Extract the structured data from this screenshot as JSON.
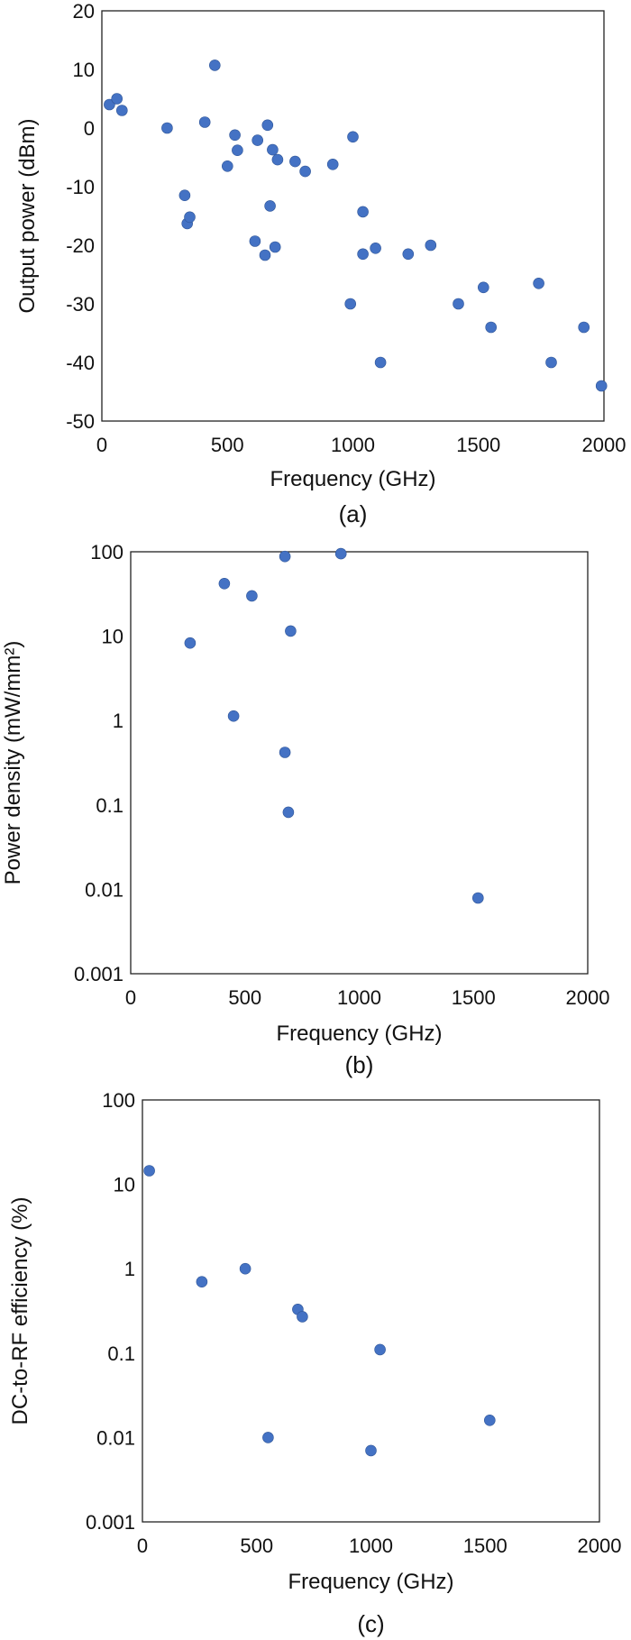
{
  "chart_data": [
    {
      "type": "scatter",
      "caption": "(a)",
      "xlabel": "Frequency (GHz)",
      "ylabel": "Output power (dBm)",
      "xlim": [
        0,
        2000
      ],
      "ylim": [
        -50,
        20
      ],
      "yscale": "linear",
      "xticks": [
        "0",
        "500",
        "1000",
        "1500",
        "2000"
      ],
      "yticks": [
        "20",
        "10",
        "0",
        "-10",
        "-20",
        "-30",
        "-40",
        "-50"
      ],
      "grid": false,
      "color": "#4472c4",
      "points": [
        [
          30,
          4
        ],
        [
          80,
          3
        ],
        [
          60,
          5
        ],
        [
          260,
          0
        ],
        [
          330,
          -11.5
        ],
        [
          340,
          -16.3
        ],
        [
          350,
          -15.2
        ],
        [
          410,
          1
        ],
        [
          450,
          10.7
        ],
        [
          500,
          -6.5
        ],
        [
          540,
          -3.8
        ],
        [
          530,
          -1.2
        ],
        [
          610,
          -19.3
        ],
        [
          620,
          -2.1
        ],
        [
          650,
          -21.7
        ],
        [
          660,
          0.5
        ],
        [
          680,
          -3.7
        ],
        [
          670,
          -13.3
        ],
        [
          700,
          -5.4
        ],
        [
          690,
          -20.3
        ],
        [
          770,
          -5.7
        ],
        [
          810,
          -7.4
        ],
        [
          920,
          -6.2
        ],
        [
          990,
          -30
        ],
        [
          1000,
          -1.5
        ],
        [
          1040,
          -14.3
        ],
        [
          1040,
          -21.5
        ],
        [
          1090,
          -20.5
        ],
        [
          1110,
          -40
        ],
        [
          1220,
          -21.5
        ],
        [
          1310,
          -20
        ],
        [
          1420,
          -30
        ],
        [
          1520,
          -27.2
        ],
        [
          1550,
          -34
        ],
        [
          1740,
          -26.5
        ],
        [
          1790,
          -40
        ],
        [
          1920,
          -34
        ],
        [
          1990,
          -44
        ]
      ]
    },
    {
      "type": "scatter",
      "caption": "(b)",
      "xlabel": "Frequency (GHz)",
      "ylabel": "Power density (mW/mm²)",
      "xlim": [
        0,
        2000
      ],
      "ylim": [
        0.001,
        100
      ],
      "yscale": "log",
      "xticks": [
        "0",
        "500",
        "1000",
        "1500",
        "2000"
      ],
      "yticks": [
        "100",
        "10",
        "1",
        "0.1",
        "0.01",
        "0.001"
      ],
      "grid": false,
      "color": "#4472c4",
      "points": [
        [
          260,
          8.3
        ],
        [
          410,
          42
        ],
        [
          450,
          1.13
        ],
        [
          530,
          30
        ],
        [
          675,
          88
        ],
        [
          675,
          0.42
        ],
        [
          690,
          0.082
        ],
        [
          700,
          11.5
        ],
        [
          920,
          95
        ],
        [
          1520,
          0.0079
        ]
      ]
    },
    {
      "type": "scatter",
      "caption": "(c)",
      "xlabel": "Frequency (GHz)",
      "ylabel": "DC-to-RF efficiency (%)",
      "xlim": [
        0,
        2000
      ],
      "ylim": [
        0.001,
        100
      ],
      "yscale": "log",
      "xticks": [
        "0",
        "500",
        "1000",
        "1500",
        "2000"
      ],
      "yticks": [
        "100",
        "10",
        "1",
        "0.1",
        "0.01",
        "0.001"
      ],
      "grid": false,
      "color": "#4472c4",
      "points": [
        [
          30,
          14.5
        ],
        [
          260,
          0.7
        ],
        [
          450,
          1
        ],
        [
          550,
          0.01
        ],
        [
          680,
          0.33
        ],
        [
          700,
          0.27
        ],
        [
          1000,
          0.007
        ],
        [
          1040,
          0.11
        ],
        [
          1520,
          0.016
        ]
      ]
    }
  ]
}
